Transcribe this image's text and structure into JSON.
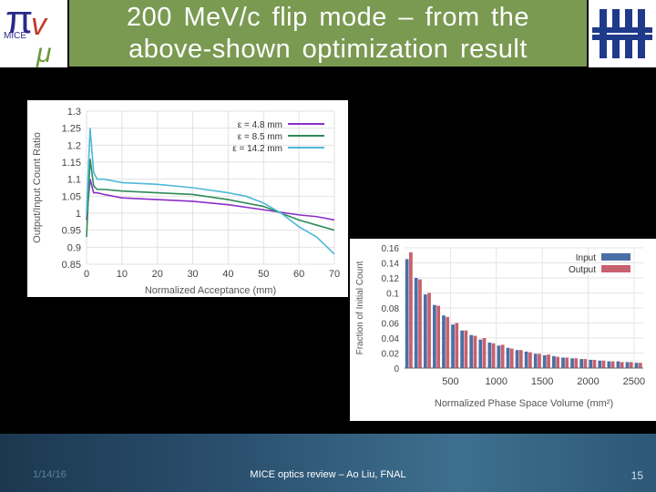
{
  "slide": {
    "title_line1": "200 MeV/c flip mode – from the",
    "title_line2": "above-shown optimization result",
    "logo_left_text": "MICE",
    "footer_date": "1/14/16",
    "footer_center": "MICE optics review – Ao Liu, FNAL",
    "slide_number": "15"
  },
  "colors": {
    "title_bar": "#7a9a52",
    "footer": "#2a4f6e",
    "fermilab_blue": "#1f3a8a"
  },
  "icons": {
    "logo_left": "mice-logo",
    "logo_right": "fermilab-logo"
  },
  "chart_data": [
    {
      "type": "line",
      "xlabel": "Normalized Acceptance (mm)",
      "ylabel": "Output/Input Count Ratio",
      "xlim": [
        0,
        70
      ],
      "ylim": [
        0.85,
        1.3
      ],
      "xticks": [
        0,
        10,
        20,
        30,
        40,
        50,
        60,
        70
      ],
      "yticks": [
        0.85,
        0.9,
        0.95,
        1,
        1.05,
        1.1,
        1.15,
        1.2,
        1.25,
        1.3
      ],
      "ytick_labels": [
        "0.85",
        "0.9",
        "0.95",
        "1",
        "1.05",
        "1.1",
        "1.15",
        "1.2",
        "1.25",
        "1.3"
      ],
      "legend_position": "top-right",
      "series": [
        {
          "name": "ε = 4.8 mm",
          "color": "#8b2fc9",
          "x": [
            0,
            1,
            2,
            3,
            5,
            10,
            20,
            30,
            40,
            50,
            60,
            65,
            70
          ],
          "y": [
            0.98,
            1.1,
            1.06,
            1.06,
            1.055,
            1.045,
            1.04,
            1.035,
            1.025,
            1.01,
            0.995,
            0.99,
            0.98
          ]
        },
        {
          "name": "ε = 8.5 mm",
          "color": "#2e8b57",
          "x": [
            0,
            1,
            2,
            3,
            5,
            10,
            20,
            30,
            40,
            50,
            60,
            65,
            70
          ],
          "y": [
            0.93,
            1.16,
            1.08,
            1.07,
            1.07,
            1.065,
            1.06,
            1.055,
            1.04,
            1.02,
            0.98,
            0.965,
            0.95
          ]
        },
        {
          "name": "ε = 14.2 mm",
          "color": "#4db8d8",
          "x": [
            0,
            1,
            2,
            3,
            5,
            10,
            20,
            30,
            40,
            45,
            50,
            55,
            60,
            65,
            70
          ],
          "y": [
            1.0,
            1.25,
            1.12,
            1.1,
            1.1,
            1.09,
            1.085,
            1.075,
            1.06,
            1.05,
            1.03,
            1.0,
            0.96,
            0.93,
            0.88
          ]
        }
      ]
    },
    {
      "type": "bar",
      "xlabel": "Normalized Phase Space Volume (mm²)",
      "ylabel": "Fraction of Initial Count",
      "xlim": [
        0,
        2600
      ],
      "ylim": [
        0,
        0.16
      ],
      "xticks": [
        500,
        1000,
        1500,
        2000,
        2500
      ],
      "yticks": [
        0,
        0.02,
        0.04,
        0.06,
        0.08,
        0.1,
        0.12,
        0.14,
        0.16
      ],
      "legend_position": "top-right",
      "bin_width": 100,
      "bin_centers": [
        50,
        150,
        250,
        350,
        450,
        550,
        650,
        750,
        850,
        950,
        1050,
        1150,
        1250,
        1350,
        1450,
        1550,
        1650,
        1750,
        1850,
        1950,
        2050,
        2150,
        2250,
        2350,
        2450,
        2550
      ],
      "series": [
        {
          "name": "Input",
          "color": "#4a6fa5",
          "values": [
            0.145,
            0.12,
            0.098,
            0.084,
            0.07,
            0.058,
            0.05,
            0.044,
            0.038,
            0.034,
            0.03,
            0.027,
            0.024,
            0.022,
            0.019,
            0.017,
            0.016,
            0.014,
            0.013,
            0.012,
            0.011,
            0.01,
            0.009,
            0.009,
            0.008,
            0.007
          ]
        },
        {
          "name": "Output",
          "color": "#c9606e",
          "values": [
            0.154,
            0.118,
            0.1,
            0.083,
            0.068,
            0.06,
            0.05,
            0.043,
            0.04,
            0.033,
            0.031,
            0.026,
            0.024,
            0.021,
            0.019,
            0.018,
            0.015,
            0.014,
            0.013,
            0.012,
            0.011,
            0.01,
            0.009,
            0.008,
            0.008,
            0.007
          ]
        }
      ]
    }
  ]
}
